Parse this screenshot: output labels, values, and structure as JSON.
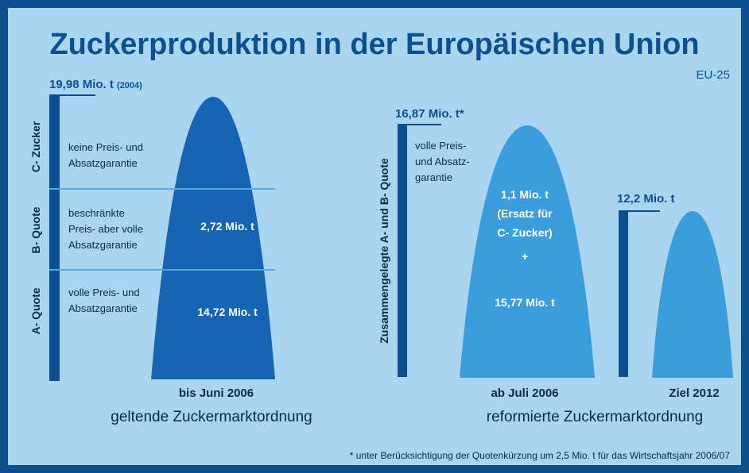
{
  "title": "Zuckerproduktion in der Europäischen Union",
  "region": "EU-25",
  "current": {
    "total": "19,98 Mio. t",
    "total_year": "(2004)",
    "segments": [
      {
        "axis_label": "C- Zucker",
        "description": [
          "keine Preis- und",
          "Absatzgarantie"
        ]
      },
      {
        "axis_label": "B- Quote",
        "description": [
          "beschränkte",
          "Preis- aber volle",
          "Absatzgarantie"
        ],
        "amount": "2,72 Mio. t"
      },
      {
        "axis_label": "A- Quote",
        "description": [
          "volle Preis- und",
          "Absatzgarantie"
        ],
        "amount": "14,72 Mio. t"
      }
    ],
    "period": "bis Juni 2006",
    "regime": "geltende Zuckermarktordnung"
  },
  "reform": {
    "axis_label": "Zusammengelegte A- und B- Quote",
    "total": "16,87 Mio. t*",
    "description": [
      "volle Preis-",
      "und Absatz-",
      "garantie"
    ],
    "amount_lines": [
      "1,1 Mio. t",
      "(Ersatz für",
      "C- Zucker)"
    ],
    "plus": "+",
    "amount": "15,77 Mio. t",
    "period": "ab Juli 2006"
  },
  "target": {
    "total": "12,2  Mio. t",
    "period": "Ziel 2012"
  },
  "reform_regime": "reformierte Zuckermarktordnung",
  "footnote": "* unter Berücksichtigung der Quotenkürzung um 2,5 Mio. t für das Wirtschaftsjahr 2006/07"
}
